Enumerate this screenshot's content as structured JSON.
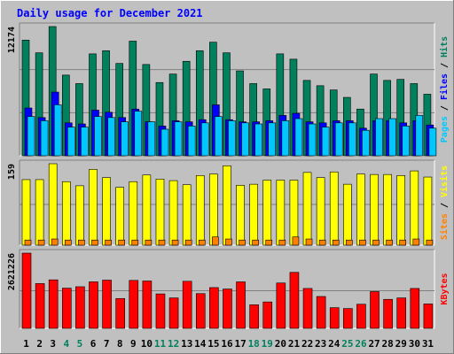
{
  "title": "Daily usage for December 2021",
  "colors": {
    "background": "#c0c0c0",
    "panel": "#c0c0c0",
    "title": "#0000ff",
    "grid": "#808080",
    "hits": "#00805c",
    "files": "#0000ff",
    "pages": "#00c8ff",
    "visits": "#ffff00",
    "sites": "#ff8000",
    "kbytes": "#ff0000",
    "weekday_label": "#000000",
    "weekend_label": "#00805c"
  },
  "chart_data": [
    {
      "type": "bar",
      "panel": "hits-files-pages",
      "ymax_label": "12174",
      "ylim": [
        0,
        12174
      ],
      "legend": [
        {
          "text": "Pages",
          "color": "#00c8ff"
        },
        {
          "text": " / ",
          "color": "#000000"
        },
        {
          "text": "Files",
          "color": "#0000ff"
        },
        {
          "text": " / ",
          "color": "#000000"
        },
        {
          "text": "Hits",
          "color": "#00805c"
        }
      ],
      "categories": [
        "1",
        "2",
        "3",
        "4",
        "5",
        "6",
        "7",
        "8",
        "9",
        "10",
        "11",
        "12",
        "13",
        "14",
        "15",
        "16",
        "17",
        "18",
        "19",
        "20",
        "21",
        "22",
        "23",
        "24",
        "25",
        "26",
        "27",
        "28",
        "29",
        "30",
        "31"
      ],
      "series": [
        {
          "name": "Hits",
          "values": [
            10900,
            9700,
            12174,
            7600,
            6800,
            9600,
            9900,
            8700,
            10800,
            8600,
            6900,
            7700,
            8900,
            9900,
            10700,
            9700,
            8000,
            6800,
            6300,
            9600,
            9100,
            7100,
            6600,
            6200,
            5500,
            4400,
            7700,
            7100,
            7200,
            6800,
            5800
          ]
        },
        {
          "name": "Files",
          "values": [
            4500,
            3600,
            6000,
            3100,
            3000,
            4300,
            4100,
            3600,
            4400,
            3200,
            2800,
            3300,
            3200,
            3400,
            4800,
            3400,
            3200,
            3200,
            3300,
            3800,
            4000,
            3200,
            3100,
            3300,
            3300,
            2600,
            3300,
            3300,
            3100,
            3300,
            2900
          ]
        },
        {
          "name": "Pages",
          "values": [
            3700,
            3300,
            4800,
            2700,
            2700,
            3700,
            3600,
            3200,
            4200,
            3200,
            2500,
            3200,
            2800,
            3100,
            3700,
            3300,
            3100,
            3000,
            3100,
            3300,
            3500,
            3000,
            2700,
            3100,
            3100,
            2400,
            3500,
            3500,
            2800,
            3800,
            2600
          ]
        }
      ]
    },
    {
      "type": "bar",
      "panel": "visits-sites",
      "ymax_label": "159",
      "ylim": [
        0,
        159
      ],
      "legend": [
        {
          "text": "Sites",
          "color": "#ff8000"
        },
        {
          "text": " / ",
          "color": "#000000"
        },
        {
          "text": "Visits",
          "color": "#ffff00"
        }
      ],
      "categories": [
        "1",
        "2",
        "3",
        "4",
        "5",
        "6",
        "7",
        "8",
        "9",
        "10",
        "11",
        "12",
        "13",
        "14",
        "15",
        "16",
        "17",
        "18",
        "19",
        "20",
        "21",
        "22",
        "23",
        "24",
        "25",
        "26",
        "27",
        "28",
        "29",
        "30",
        "31"
      ],
      "series": [
        {
          "name": "Visits",
          "values": [
            128,
            128,
            159,
            124,
            116,
            148,
            132,
            113,
            124,
            137,
            129,
            126,
            118,
            136,
            139,
            155,
            117,
            119,
            127,
            127,
            127,
            142,
            132,
            143,
            119,
            139,
            138,
            138,
            136,
            145,
            133
          ]
        },
        {
          "name": "Sites",
          "values": [
            10,
            10,
            12,
            10,
            10,
            10,
            10,
            10,
            10,
            10,
            10,
            10,
            10,
            10,
            16,
            12,
            10,
            10,
            10,
            10,
            16,
            12,
            10,
            10,
            10,
            10,
            10,
            10,
            10,
            12,
            10
          ]
        }
      ]
    },
    {
      "type": "bar",
      "panel": "kbytes",
      "ymax_label": "2621226",
      "ylim": [
        0,
        2621226
      ],
      "legend": [
        {
          "text": "KBytes",
          "color": "#ff0000"
        }
      ],
      "categories": [
        "1",
        "2",
        "3",
        "4",
        "5",
        "6",
        "7",
        "8",
        "9",
        "10",
        "11",
        "12",
        "13",
        "14",
        "15",
        "16",
        "17",
        "18",
        "19",
        "20",
        "21",
        "22",
        "23",
        "24",
        "25",
        "26",
        "27",
        "28",
        "29",
        "30",
        "31"
      ],
      "series": [
        {
          "name": "KBytes",
          "values": [
            2621226,
            1560000,
            1690000,
            1400000,
            1450000,
            1620000,
            1680000,
            1040000,
            1670000,
            1650000,
            1200000,
            1060000,
            1640000,
            1210000,
            1420000,
            1370000,
            1620000,
            820000,
            920000,
            1580000,
            1950000,
            1390000,
            1110000,
            720000,
            690000,
            840000,
            1280000,
            1010000,
            1060000,
            1390000,
            850000
          ]
        }
      ]
    }
  ],
  "weekend_days": [
    "4",
    "5",
    "11",
    "12",
    "18",
    "19",
    "25",
    "26"
  ]
}
